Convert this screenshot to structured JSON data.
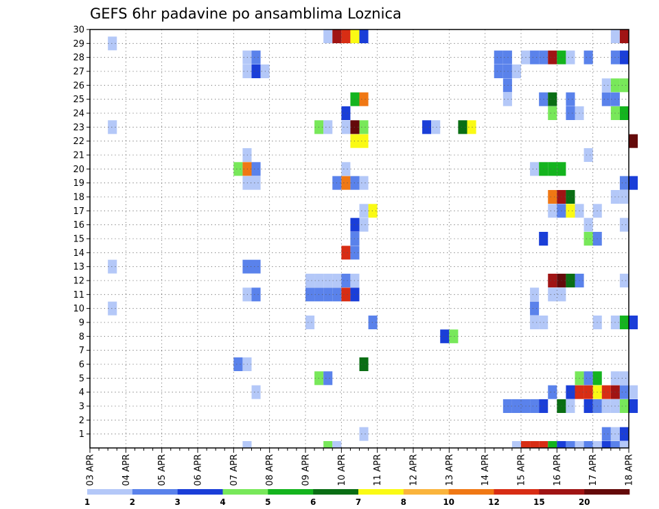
{
  "chart_data": {
    "type": "heatmap",
    "title": "GEFS 6hr padavine po ansamblima Loznica",
    "x_tick_labels": [
      "03 APR",
      "04 APR",
      "05 APR",
      "06 APR",
      "07 APR",
      "08 APR",
      "09 APR",
      "10 APR",
      "11 APR",
      "12 APR",
      "13 APR",
      "14 APR",
      "15 APR",
      "16 APR",
      "17 APR",
      "18 APR"
    ],
    "y_tick_labels": [
      "1",
      "2",
      "3",
      "4",
      "5",
      "6",
      "7",
      "8",
      "9",
      "10",
      "11",
      "12",
      "13",
      "14",
      "15",
      "16",
      "17",
      "18",
      "19",
      "20",
      "21",
      "22",
      "23",
      "24",
      "25",
      "26",
      "27",
      "28",
      "29",
      "30"
    ],
    "ensemble_range": [
      0,
      30
    ],
    "time_steps_per_day": 4,
    "grid": "dotted",
    "colorbar": {
      "placement": "bottom",
      "levels": [
        "1",
        "2",
        "3",
        "4",
        "5",
        "6",
        "7",
        "8",
        "10",
        "12",
        "15",
        "20"
      ],
      "colors": [
        "#b4c8f8",
        "#5a82eb",
        "#1a3ed8",
        "#78e85a",
        "#14b41e",
        "#0a6e14",
        "#fafa14",
        "#fab43c",
        "#f07814",
        "#d82d14",
        "#a01414",
        "#640a0a"
      ]
    },
    "cells": [
      {
        "member": 30,
        "t": [
          [
            26,
            0
          ],
          [
            27,
            10
          ],
          [
            28,
            9
          ],
          [
            29,
            6
          ],
          [
            30,
            2
          ],
          [
            58,
            0
          ],
          [
            59,
            10
          ]
        ]
      },
      {
        "member": 29,
        "t": [
          [
            2,
            0
          ]
        ]
      },
      {
        "member": 28,
        "t": [
          [
            17,
            0
          ],
          [
            18,
            1
          ],
          [
            45,
            1
          ],
          [
            46,
            1
          ],
          [
            48,
            0
          ],
          [
            49,
            1
          ],
          [
            50,
            1
          ],
          [
            51,
            10
          ],
          [
            52,
            4
          ],
          [
            53,
            0
          ],
          [
            55,
            1
          ],
          [
            58,
            1
          ],
          [
            59,
            2
          ]
        ]
      },
      {
        "member": 27,
        "t": [
          [
            17,
            0
          ],
          [
            18,
            2
          ],
          [
            19,
            0
          ],
          [
            45,
            1
          ],
          [
            46,
            1
          ],
          [
            47,
            0
          ]
        ]
      },
      {
        "member": 26,
        "t": [
          [
            46,
            1
          ],
          [
            57,
            0
          ],
          [
            58,
            3
          ],
          [
            59,
            3
          ]
        ]
      },
      {
        "member": 25,
        "t": [
          [
            29,
            4
          ],
          [
            30,
            8
          ],
          [
            46,
            0
          ],
          [
            50,
            1
          ],
          [
            51,
            5
          ],
          [
            53,
            1
          ],
          [
            57,
            1
          ],
          [
            58,
            1
          ]
        ]
      },
      {
        "member": 24,
        "t": [
          [
            28,
            2
          ],
          [
            51,
            3
          ],
          [
            53,
            1
          ],
          [
            54,
            0
          ],
          [
            58,
            3
          ],
          [
            59,
            4
          ]
        ]
      },
      {
        "member": 23,
        "t": [
          [
            2,
            0
          ],
          [
            25,
            3
          ],
          [
            26,
            0
          ],
          [
            28,
            0
          ],
          [
            29,
            11
          ],
          [
            30,
            3
          ],
          [
            37,
            2
          ],
          [
            38,
            0
          ],
          [
            41,
            5
          ],
          [
            42,
            6
          ]
        ]
      },
      {
        "member": 22,
        "t": [
          [
            29,
            6
          ],
          [
            30,
            6
          ],
          [
            60,
            11
          ]
        ]
      },
      {
        "member": 21,
        "t": [
          [
            17,
            0
          ],
          [
            55,
            0
          ]
        ]
      },
      {
        "member": 20,
        "t": [
          [
            16,
            3
          ],
          [
            17,
            8
          ],
          [
            18,
            1
          ],
          [
            28,
            0
          ],
          [
            49,
            0
          ],
          [
            50,
            4
          ],
          [
            51,
            4
          ],
          [
            52,
            4
          ]
        ]
      },
      {
        "member": 19,
        "t": [
          [
            17,
            0
          ],
          [
            18,
            0
          ],
          [
            27,
            1
          ],
          [
            28,
            8
          ],
          [
            29,
            1
          ],
          [
            30,
            0
          ],
          [
            59,
            1
          ],
          [
            60,
            2
          ]
        ]
      },
      {
        "member": 18,
        "t": [
          [
            51,
            8
          ],
          [
            52,
            10
          ],
          [
            53,
            5
          ],
          [
            58,
            0
          ],
          [
            59,
            0
          ]
        ]
      },
      {
        "member": 17,
        "t": [
          [
            30,
            0
          ],
          [
            31,
            6
          ],
          [
            51,
            0
          ],
          [
            52,
            1
          ],
          [
            53,
            6
          ],
          [
            54,
            0
          ],
          [
            56,
            0
          ]
        ]
      },
      {
        "member": 16,
        "t": [
          [
            29,
            2
          ],
          [
            30,
            0
          ],
          [
            55,
            0
          ],
          [
            59,
            0
          ]
        ]
      },
      {
        "member": 15,
        "t": [
          [
            29,
            1
          ],
          [
            50,
            2
          ],
          [
            55,
            3
          ],
          [
            56,
            1
          ]
        ]
      },
      {
        "member": 14,
        "t": [
          [
            28,
            9
          ],
          [
            29,
            1
          ]
        ]
      },
      {
        "member": 13,
        "t": [
          [
            2,
            0
          ],
          [
            17,
            1
          ],
          [
            18,
            1
          ]
        ]
      },
      {
        "member": 12,
        "t": [
          [
            24,
            0
          ],
          [
            25,
            0
          ],
          [
            26,
            0
          ],
          [
            27,
            0
          ],
          [
            28,
            1
          ],
          [
            29,
            0
          ],
          [
            51,
            10
          ],
          [
            52,
            11
          ],
          [
            53,
            5
          ],
          [
            54,
            1
          ],
          [
            59,
            0
          ]
        ]
      },
      {
        "member": 11,
        "t": [
          [
            17,
            0
          ],
          [
            18,
            1
          ],
          [
            24,
            1
          ],
          [
            25,
            1
          ],
          [
            26,
            1
          ],
          [
            27,
            1
          ],
          [
            28,
            9
          ],
          [
            29,
            2
          ],
          [
            49,
            0
          ],
          [
            51,
            0
          ],
          [
            52,
            0
          ]
        ]
      },
      {
        "member": 10,
        "t": [
          [
            2,
            0
          ],
          [
            49,
            1
          ]
        ]
      },
      {
        "member": 9,
        "t": [
          [
            24,
            0
          ],
          [
            31,
            1
          ],
          [
            49,
            0
          ],
          [
            50,
            0
          ],
          [
            56,
            0
          ],
          [
            58,
            0
          ],
          [
            59,
            4
          ],
          [
            60,
            2
          ]
        ]
      },
      {
        "member": 8,
        "t": [
          [
            39,
            2
          ],
          [
            40,
            3
          ]
        ]
      },
      {
        "member": 6,
        "t": [
          [
            16,
            1
          ],
          [
            17,
            0
          ],
          [
            30,
            5
          ]
        ]
      },
      {
        "member": 5,
        "t": [
          [
            25,
            3
          ],
          [
            26,
            1
          ],
          [
            54,
            3
          ],
          [
            55,
            1
          ],
          [
            56,
            4
          ],
          [
            58,
            0
          ],
          [
            59,
            0
          ]
        ]
      },
      {
        "member": 4,
        "t": [
          [
            18,
            0
          ],
          [
            51,
            1
          ],
          [
            53,
            2
          ],
          [
            54,
            9
          ],
          [
            55,
            9
          ],
          [
            56,
            6
          ],
          [
            57,
            9
          ],
          [
            58,
            10
          ],
          [
            59,
            1
          ],
          [
            60,
            0
          ]
        ]
      },
      {
        "member": 3,
        "t": [
          [
            46,
            1
          ],
          [
            47,
            1
          ],
          [
            48,
            1
          ],
          [
            49,
            1
          ],
          [
            50,
            2
          ],
          [
            52,
            5
          ],
          [
            53,
            0
          ],
          [
            55,
            2
          ],
          [
            56,
            1
          ],
          [
            57,
            0
          ],
          [
            58,
            0
          ],
          [
            59,
            3
          ],
          [
            60,
            2
          ]
        ]
      },
      {
        "member": 1,
        "t": [
          [
            30,
            0
          ],
          [
            57,
            1
          ],
          [
            58,
            0
          ],
          [
            59,
            2
          ]
        ]
      },
      {
        "member": 0,
        "t": [
          [
            17,
            0
          ],
          [
            26,
            3
          ],
          [
            27,
            0
          ],
          [
            47,
            0
          ],
          [
            48,
            9
          ],
          [
            49,
            9
          ],
          [
            50,
            9
          ],
          [
            51,
            4
          ],
          [
            52,
            2
          ],
          [
            53,
            1
          ],
          [
            54,
            0
          ],
          [
            55,
            1
          ],
          [
            56,
            0
          ],
          [
            57,
            2
          ],
          [
            58,
            1
          ],
          [
            59,
            0
          ]
        ]
      }
    ]
  }
}
